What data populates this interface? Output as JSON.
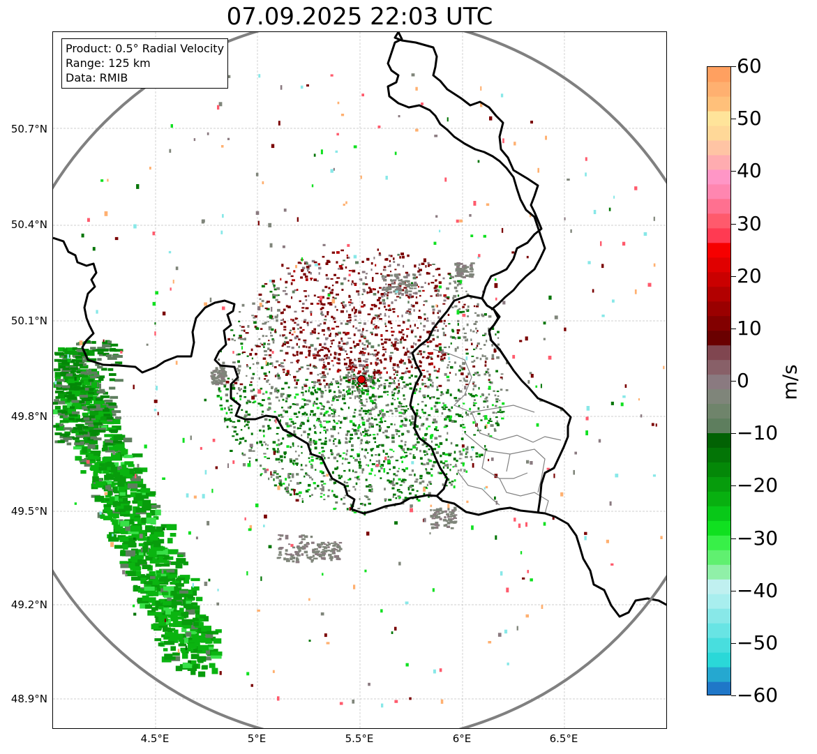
{
  "title": "07.09.2025 22:03 UTC",
  "info_box": {
    "product": "Product: 0.5° Radial Velocity",
    "range": "Range: 125 km",
    "data": "Data: RMIB"
  },
  "map": {
    "lat_labels": [
      "50.7°N",
      "50.4°N",
      "50.1°N",
      "49.8°N",
      "49.5°N",
      "49.2°N",
      "48.9°N"
    ],
    "lon_labels": [
      "4.5°E",
      "5°E",
      "5.5°E",
      "6°E",
      "6.5°E"
    ],
    "radar_site_color": "#e00000",
    "range_ring_color": "#808080",
    "border_color": "#000000",
    "subdivision_color": "#808080"
  },
  "colorbar": {
    "label": "m/s",
    "ticks": [
      "60",
      "50",
      "40",
      "30",
      "20",
      "10",
      "0",
      "−10",
      "−20",
      "−30",
      "−40",
      "−50",
      "−60"
    ],
    "colors": [
      "#1f77c8",
      "#25a8d0",
      "#2ad8d8",
      "#48dede",
      "#68e4e4",
      "#88e8e8",
      "#a8eeee",
      "#c0f0f0",
      "#90f0a8",
      "#60f070",
      "#38f048",
      "#10e020",
      "#08c818",
      "#08b010",
      "#069c0c",
      "#048808",
      "#037506",
      "#026204",
      "#5e7e5e",
      "#6f846b",
      "#7f857a",
      "#8a7a80",
      "#886068",
      "#804650",
      "#6a0000",
      "#820000",
      "#9a0000",
      "#b20000",
      "#ca0000",
      "#e00000",
      "#f60000",
      "#ff3a52",
      "#ff5a6c",
      "#ff7090",
      "#ff86b0",
      "#ff96c6",
      "#ffacb0",
      "#ffc4a4",
      "#ffd898",
      "#ffe49a",
      "#ffc07a",
      "#ffb070",
      "#ffa060"
    ]
  }
}
